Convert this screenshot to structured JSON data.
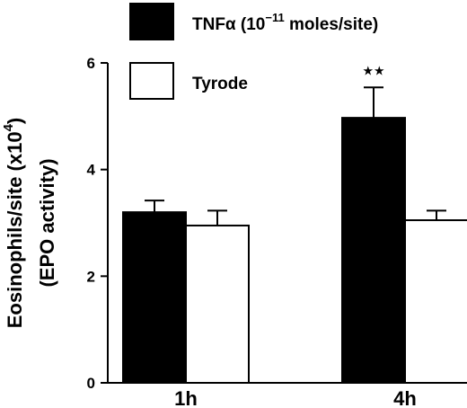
{
  "chart_data": {
    "type": "bar",
    "categories": [
      "1h",
      "4h"
    ],
    "series": [
      {
        "name": "TNFα (10⁻¹¹ moles/site)",
        "name_parts": {
          "base": "TNFα (10",
          "sup": "−11",
          "rest": " moles/site)"
        },
        "fill": "#000000",
        "values": [
          3.2,
          4.97
        ],
        "errors": [
          0.22,
          0.57
        ]
      },
      {
        "name": "Tyrode",
        "fill": "#ffffff",
        "values": [
          2.95,
          3.05
        ],
        "errors": [
          0.28,
          0.18
        ]
      }
    ],
    "ylabel": {
      "line1_base": "Eosinophils/site (x10",
      "line1_sup": "4",
      "line1_rest": ")",
      "line2": "(EPO activity)"
    },
    "yticks": [
      0,
      2,
      4,
      6
    ],
    "ylim": [
      0,
      6
    ],
    "annotations": [
      {
        "text": "★★",
        "category_index": 1,
        "series_index": 0
      }
    ],
    "legend_position": "top"
  }
}
